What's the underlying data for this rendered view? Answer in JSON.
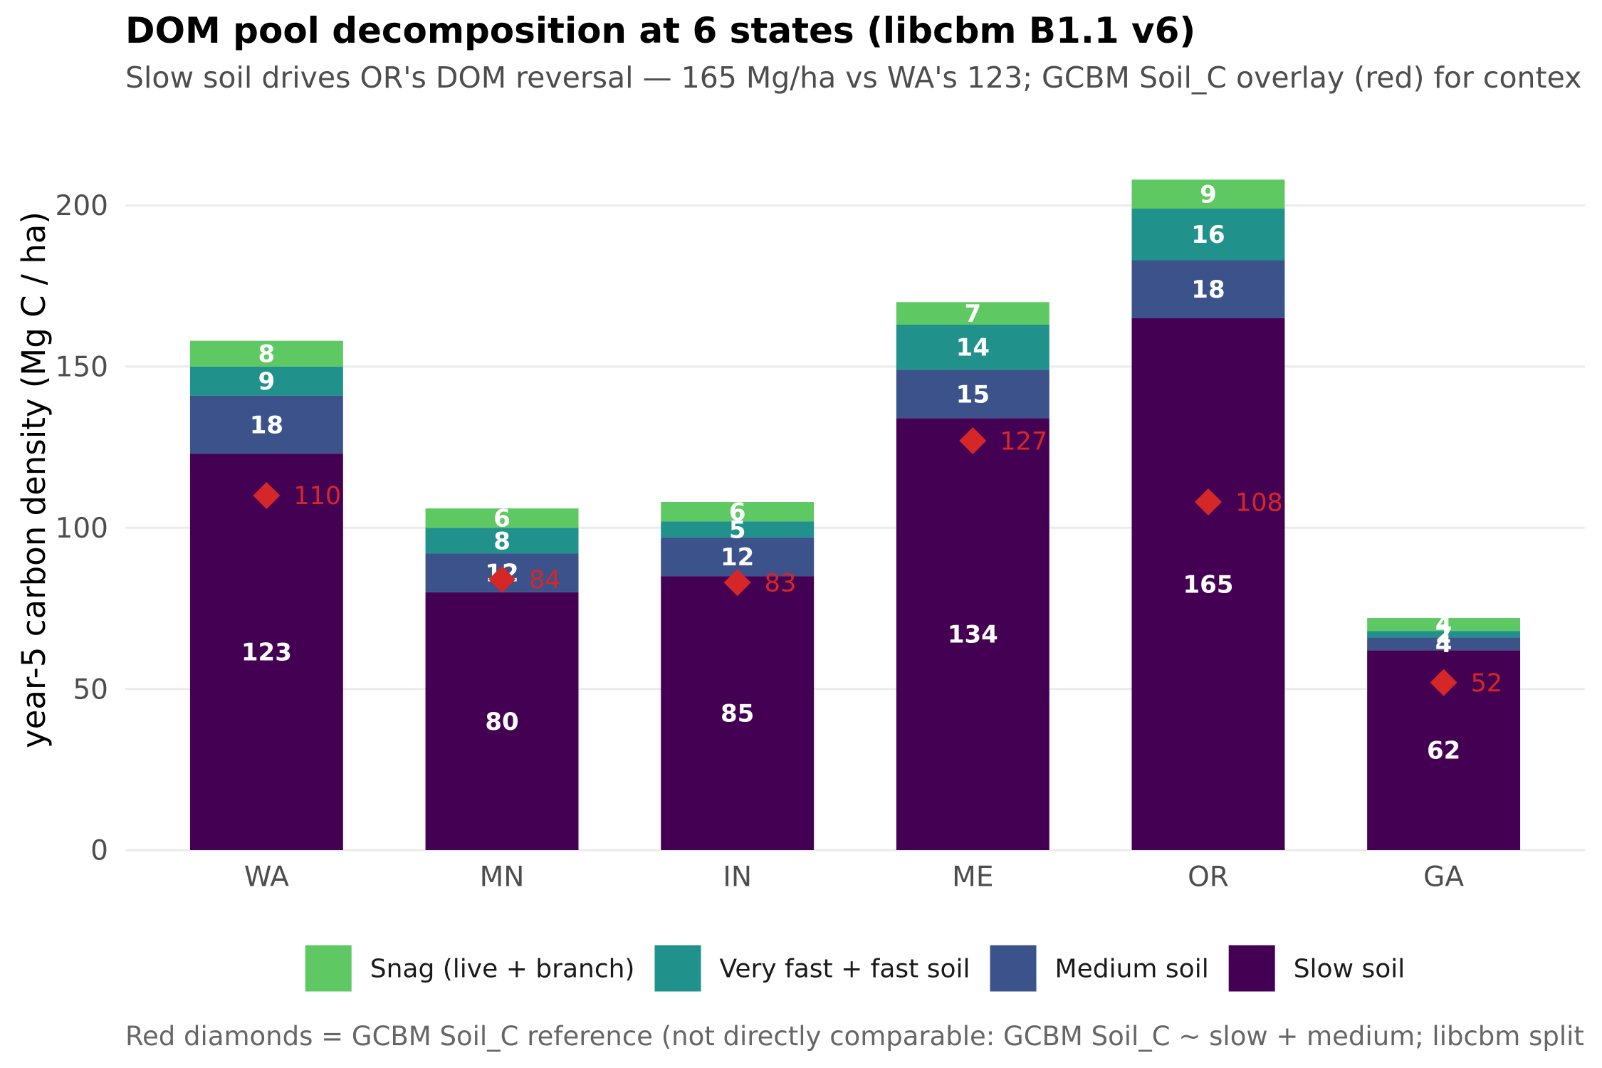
{
  "chart_data": {
    "type": "bar",
    "stacked": true,
    "title": "DOM pool decomposition at 6 states (libcbm B1.1 v6)",
    "subtitle": "Slow soil drives OR's DOM reversal — 165 Mg/ha vs WA's 123; GCBM Soil_C overlay (red) for contex",
    "caption": "Red diamonds = GCBM Soil_C reference (not directly comparable: GCBM Soil_C ~ slow + medium; libcbm split",
    "ylabel": "year-5 carbon density (Mg C / ha)",
    "categories": [
      "WA",
      "MN",
      "IN",
      "ME",
      "OR",
      "GA"
    ],
    "ylim": [
      0,
      218
    ],
    "yticks": [
      0,
      50,
      100,
      150,
      200
    ],
    "grid": "horizontal major",
    "legend_position": "bottom",
    "series": [
      {
        "name": "Slow soil",
        "color": "#440154",
        "values": [
          123,
          80,
          85,
          134,
          165,
          62
        ]
      },
      {
        "name": "Medium soil",
        "color": "#3b528b",
        "values": [
          18,
          12,
          12,
          15,
          18,
          4
        ]
      },
      {
        "name": "Very fast + fast soil",
        "color": "#21918c",
        "values": [
          9,
          8,
          5,
          14,
          16,
          2
        ]
      },
      {
        "name": "Snag (live + branch)",
        "color": "#5ec962",
        "values": [
          8,
          6,
          6,
          7,
          9,
          4
        ]
      }
    ],
    "overlay": {
      "type": "scatter",
      "marker": "diamond",
      "color": "#d62728",
      "values": [
        110,
        84,
        83,
        127,
        108,
        52
      ]
    }
  }
}
